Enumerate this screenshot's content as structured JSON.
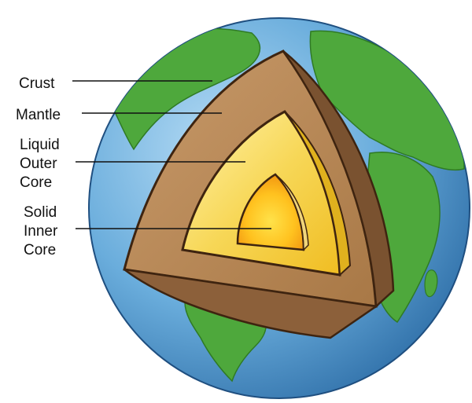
{
  "labels": [
    {
      "id": "crust",
      "lines": [
        "Crust"
      ]
    },
    {
      "id": "mantle",
      "lines": [
        "Mantle"
      ]
    },
    {
      "id": "outer-core",
      "lines": [
        "Liquid",
        "Outer",
        "Core"
      ]
    },
    {
      "id": "inner-core",
      "lines": [
        "Solid",
        "Inner",
        "Core"
      ]
    }
  ],
  "colors": {
    "ocean": "#5b9fd0",
    "land": "#4ea83c",
    "crust_shell": "#9a6b42",
    "mantle": "#b98a5c",
    "outer_core": "#f2c62a",
    "inner_core": "#ffd23a",
    "outline": "#3e2410"
  }
}
